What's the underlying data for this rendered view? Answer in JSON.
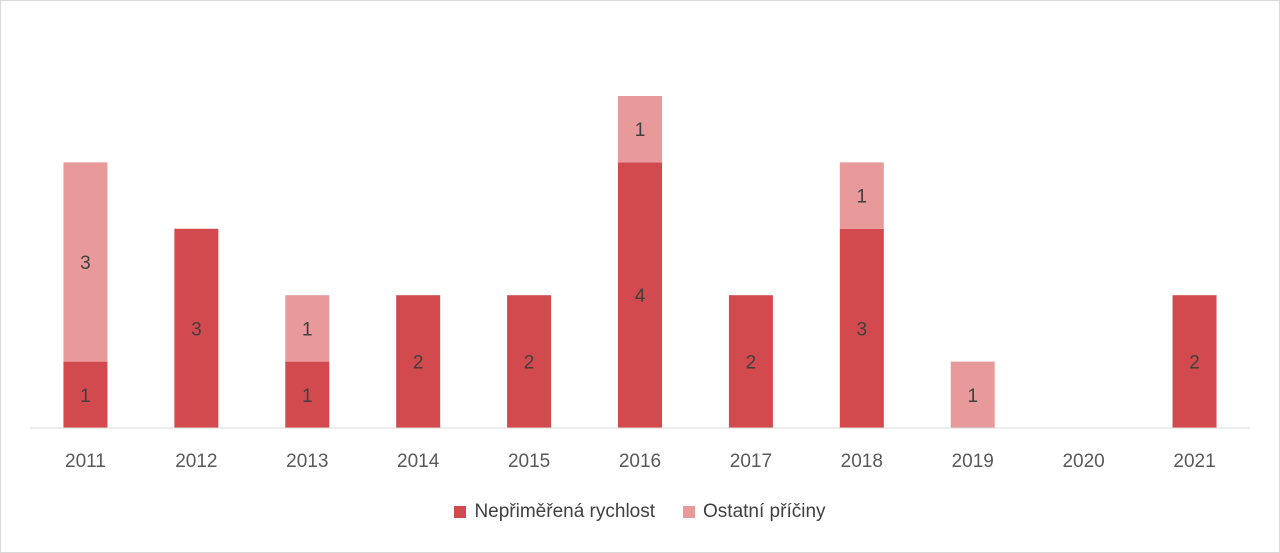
{
  "chart_data": {
    "type": "bar",
    "stacked": true,
    "categories": [
      "2011",
      "2012",
      "2013",
      "2014",
      "2015",
      "2016",
      "2017",
      "2018",
      "2019",
      "2020",
      "2021"
    ],
    "series": [
      {
        "name": "Nepřiměřená rychlost",
        "color": "#d24a4d",
        "values": [
          1,
          3,
          1,
          2,
          2,
          4,
          2,
          3,
          0,
          0,
          2
        ]
      },
      {
        "name": "Ostatní příčiny",
        "color": "#e8999a",
        "values": [
          3,
          0,
          1,
          0,
          0,
          1,
          0,
          1,
          1,
          0,
          0
        ]
      }
    ],
    "ylim": [
      0,
      5
    ],
    "grid": false,
    "legend_position": "bottom"
  }
}
